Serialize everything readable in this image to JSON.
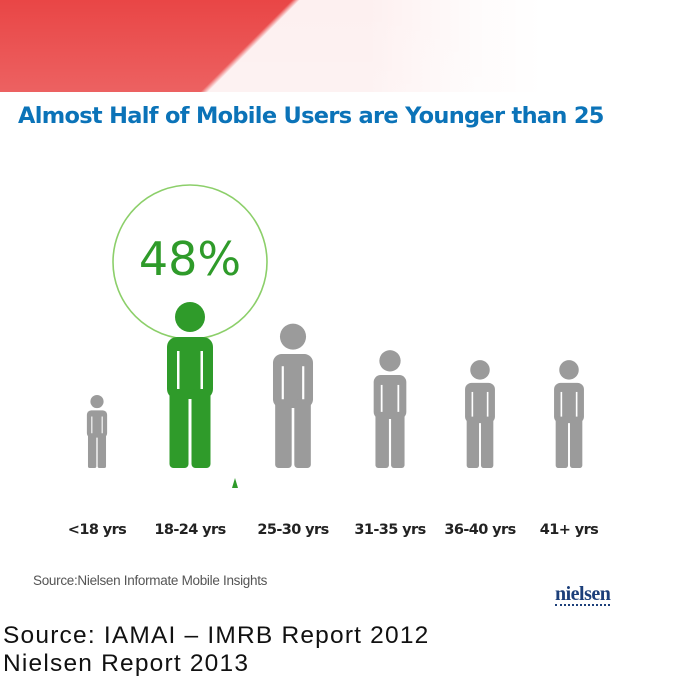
{
  "title": "Almost Half of Mobile Users are Younger than 25",
  "source_small": "Source:Nielsen Informate Mobile Insights",
  "brand": "nielsen",
  "source_line1": "Source: IAMAI – IMRB Report 2012",
  "source_line2": "Nielsen Report 2013",
  "colors": {
    "title": "#0b73b8",
    "highlight": "#2f9b2a",
    "figure": "#9b9b9b",
    "circle": "#8ccf6a"
  },
  "chart_data": {
    "type": "bar",
    "title": "Almost Half of Mobile Users are Younger than 25",
    "categories": [
      "<18 yrs",
      "18-24 yrs",
      "25-30 yrs",
      "31-35 yrs",
      "36-40 yrs",
      "41+ yrs"
    ],
    "values": [
      null,
      48,
      null,
      null,
      null,
      null
    ],
    "highlight_index": 1,
    "highlight_label": "48%",
    "relative_size": [
      0.44,
      1.0,
      0.87,
      0.71,
      0.65,
      0.65
    ]
  }
}
